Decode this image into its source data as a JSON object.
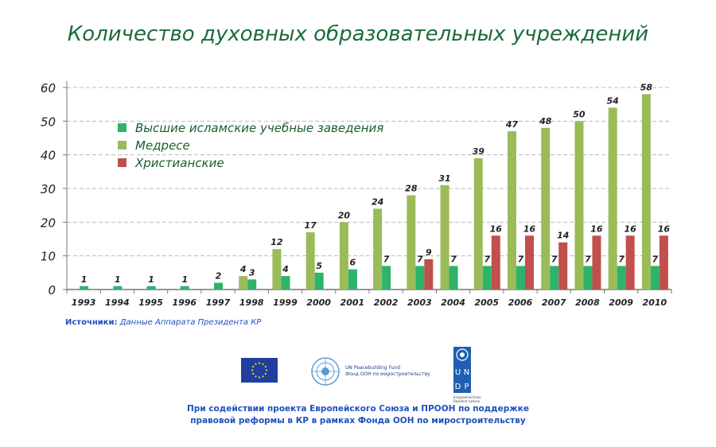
{
  "chart_data": {
    "type": "bar",
    "title": "Количество духовных образовательных учреждений",
    "xlabel": "",
    "ylabel": "",
    "ylim": [
      0,
      60
    ],
    "yticks": [
      0,
      10,
      20,
      30,
      40,
      50,
      60
    ],
    "grid": true,
    "legend_position": "top-left",
    "categories": [
      "1993",
      "1994",
      "1995",
      "1996",
      "1997",
      "1998",
      "1999",
      "2000",
      "2001",
      "2002",
      "2003",
      "2004",
      "2005",
      "2006",
      "2007",
      "2008",
      "2009",
      "2010"
    ],
    "series": [
      {
        "name": "Медресе",
        "color": "#9bbb59",
        "values": [
          null,
          null,
          null,
          null,
          null,
          4,
          12,
          17,
          20,
          24,
          28,
          31,
          39,
          47,
          48,
          50,
          54,
          58
        ]
      },
      {
        "name": "Высшие исламские учебные заведения",
        "color": "#2db36a",
        "values": [
          1,
          1,
          1,
          1,
          2,
          3,
          4,
          5,
          6,
          7,
          7,
          7,
          7,
          7,
          7,
          7,
          7,
          7
        ]
      },
      {
        "name": "Христианские",
        "color": "#c0504d",
        "values": [
          null,
          null,
          null,
          null,
          null,
          null,
          null,
          null,
          null,
          null,
          9,
          null,
          16,
          16,
          14,
          16,
          16,
          16
        ]
      }
    ],
    "legend_order": [
      1,
      0,
      2
    ]
  },
  "source": {
    "label": "Источники:",
    "text": "Данные Аппарата Президента КР"
  },
  "logos": {
    "pbf_line1": "UN Peacebuilding Fund",
    "pbf_line2": "Фонд ООН по миростроительству",
    "undp_letters": [
      "U",
      "N",
      "D",
      "P"
    ],
    "undp_tagline1": "Empowered lives.",
    "undp_tagline2": "Resilient nations."
  },
  "credit": {
    "line1": "При содействии проекта Европейского Союза и ПРООН по поддержке",
    "line2": "правовой реформы в КР в рамках Фонда ООН по миростроительству"
  }
}
